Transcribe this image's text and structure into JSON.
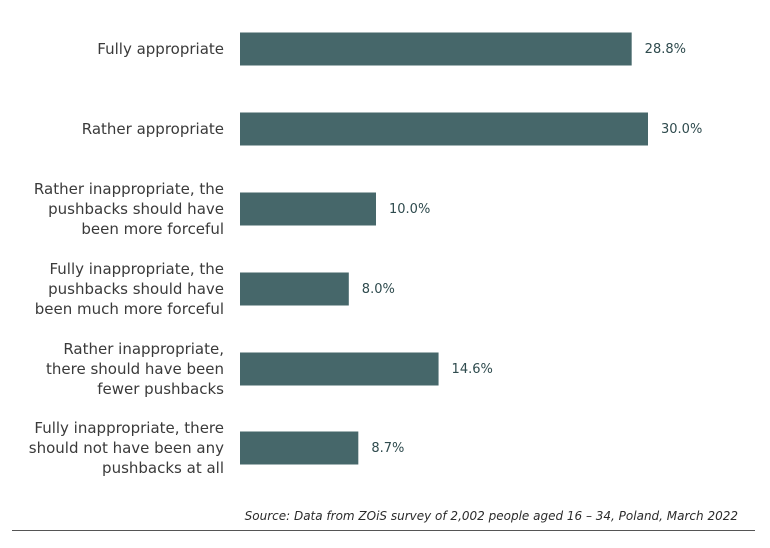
{
  "chart_data": {
    "type": "bar",
    "orientation": "horizontal",
    "categories": [
      [
        "Fully appropriate"
      ],
      [
        "Rather appropriate"
      ],
      [
        "Rather inappropriate, the",
        "pushbacks should have",
        "been more forceful"
      ],
      [
        "Fully inappropriate, the",
        "pushbacks should have",
        "been much more forceful"
      ],
      [
        "Rather inappropriate,",
        "there should have been",
        "fewer pushbacks"
      ],
      [
        "Fully inappropriate, there",
        "should not have been any",
        "pushbacks at all"
      ]
    ],
    "values": [
      28.8,
      30.0,
      10.0,
      8.0,
      14.6,
      8.7
    ],
    "value_labels": [
      "28.8%",
      "30.0%",
      "10.0%",
      "8.0%",
      "14.6%",
      "8.7%"
    ],
    "xlim": [
      0,
      30
    ],
    "grid": false,
    "legend": "none",
    "bar_color": "#46676a"
  },
  "source": "Source: Data from ZOiS survey of 2,002 people aged 16 – 34, Poland, March 2022"
}
